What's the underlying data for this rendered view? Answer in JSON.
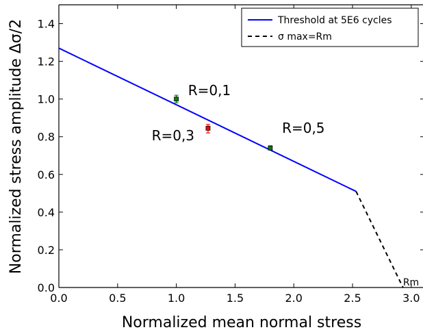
{
  "chart_data": {
    "type": "line",
    "xlabel": "Normalized mean normal stress",
    "ylabel": "Normalized stress amplitude Δσ/2",
    "xlim": [
      0.0,
      3.1
    ],
    "ylim": [
      0.0,
      1.5
    ],
    "x_ticks": [
      "0.0",
      "0.5",
      "1.0",
      "1.5",
      "2.0",
      "2.5",
      "3.0"
    ],
    "y_ticks": [
      "0.0",
      "0.2",
      "0.4",
      "0.6",
      "0.8",
      "1.0",
      "1.2",
      "1.4"
    ],
    "grid": false,
    "legend_position": "top-right",
    "series": [
      {
        "name": "Threshold at 5E6 cycles",
        "color": "#0000ff",
        "style": "solid",
        "x": [
          0.0,
          2.53
        ],
        "y": [
          1.27,
          0.51
        ]
      },
      {
        "name": "σ max=Rm",
        "color": "#000000",
        "style": "dashed",
        "x": [
          2.53,
          2.93
        ],
        "y": [
          0.51,
          0.0
        ]
      }
    ],
    "points": [
      {
        "label": "R=0,1",
        "x": 1.0,
        "y": 1.0,
        "err_low": 0.98,
        "err_high": 1.02,
        "color": "#008000"
      },
      {
        "label": "R=0,3",
        "x": 1.27,
        "y": 0.845,
        "err_low": 0.82,
        "err_high": 0.865,
        "color": "#ff0000"
      },
      {
        "label": "R=0,5",
        "x": 1.8,
        "y": 0.74,
        "err_low": 0.73,
        "err_high": 0.752,
        "color": "#008000"
      }
    ],
    "annotations": [
      {
        "id": "r01",
        "text": "R=0,1",
        "x": 1.1,
        "y": 1.02
      },
      {
        "id": "r03",
        "text": "R=0,3",
        "x": 0.79,
        "y": 0.78
      },
      {
        "id": "r05",
        "text": "R=0,5",
        "x": 1.9,
        "y": 0.82
      },
      {
        "id": "rm",
        "text": "Rm",
        "x": 2.93,
        "y": 0.01
      }
    ]
  }
}
